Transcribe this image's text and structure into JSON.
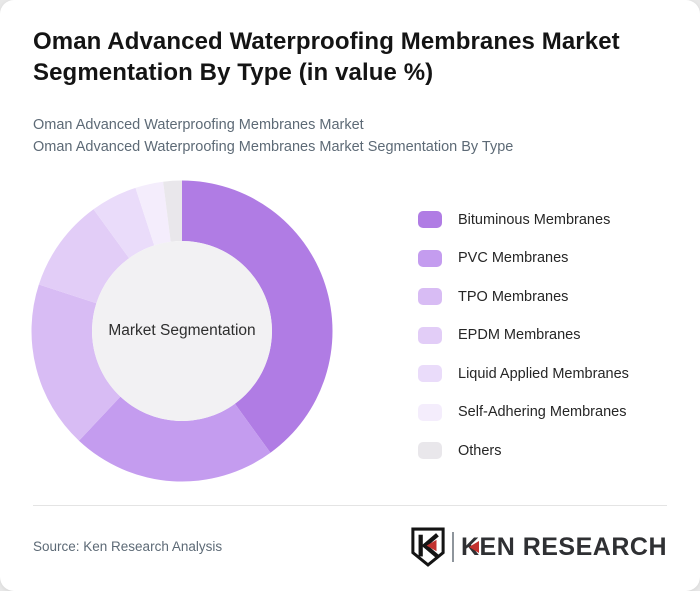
{
  "header": {
    "title": "Oman Advanced Waterproofing Membranes Market Segmentation By Type (in value %)",
    "subtitle_line1": "Oman Advanced Waterproofing Membranes Market",
    "subtitle_line2": "Oman Advanced Waterproofing Membranes Market Segmentation By Type"
  },
  "chart_data": {
    "type": "pie",
    "subtype": "donut",
    "title": "Oman Advanced Waterproofing Membranes Market Segmentation By Type (in value %)",
    "center_label": "Market Segmentation",
    "unit": "value %",
    "start_angle_deg": 0,
    "direction": "clockwise",
    "legend_position": "right",
    "categories": [
      "Bituminous Membranes",
      "PVC Membranes",
      "TPO Membranes",
      "EPDM Membranes",
      "Liquid Applied Membranes",
      "Self-Adhering Membranes",
      "Others"
    ],
    "values": [
      40,
      22,
      18,
      10,
      5,
      3,
      2
    ],
    "colors": [
      "#b07ce4",
      "#c49cef",
      "#d8bcf4",
      "#e2cdf7",
      "#eadcfa",
      "#f4edfc",
      "#e9e7eb"
    ],
    "hole_color": "#f2f1f3"
  },
  "footer": {
    "source": "Source: Ken Research Analysis",
    "logo_text": "KEN RESEARCH"
  }
}
